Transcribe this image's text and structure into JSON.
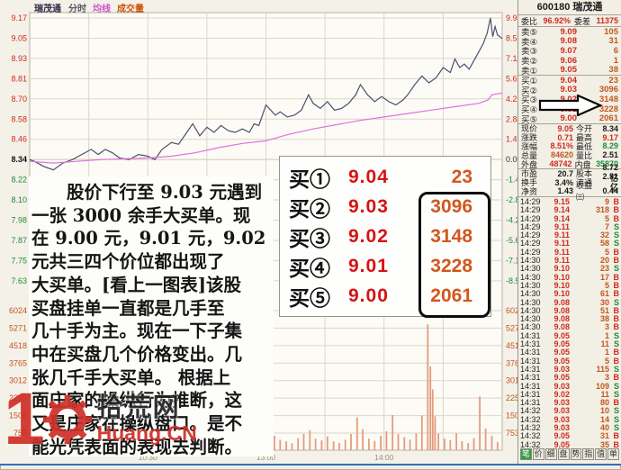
{
  "colors": {
    "up": "#cf2a1f",
    "down": "#1f8a3c",
    "volume": "#c2571d",
    "price_line": "#4a5070",
    "avg_line": "#e070e0",
    "bars": "#e59b7d",
    "highlight": "#0c0c0c",
    "tab_active": "#2f9e44",
    "window_bottom": "#2e6fc0"
  },
  "chart": {
    "title_stock": "瑞茂通",
    "legend": [
      {
        "label": "分时",
        "color": "#555566"
      },
      {
        "label": "均线",
        "color": "#cc55cc"
      },
      {
        "label": "成交量",
        "color": "#cc5511"
      }
    ]
  },
  "chart_data": {
    "type": "line",
    "title": "瑞茂通 分时走势",
    "x_axis": {
      "labels": [
        "10:30",
        "13:00",
        "14:00"
      ],
      "positions": [
        0.25,
        0.5,
        0.75
      ]
    },
    "price_axis": {
      "labels": [
        "9.17",
        "9.05",
        "8.93",
        "8.81",
        "8.70",
        "8.58",
        "8.46",
        "8.34",
        "8.22",
        "8.10",
        "7.98",
        "7.87",
        "7.75",
        "7.63"
      ],
      "prev_close": "8.34"
    },
    "pct_axis": {
      "labels": [
        "9.95%",
        "8.53%",
        "7.11%",
        "5.69%",
        "4.27%",
        "2.84%",
        "1.42%",
        "0.00%",
        "-1.42%",
        "-2.84%",
        "-4.27%",
        "-5.69%",
        "-7.11%",
        "-8.53%"
      ]
    },
    "volume_axis": {
      "labels": [
        "6024",
        "5271",
        "4518",
        "3765",
        "3012",
        "2259",
        "1506",
        "753"
      ]
    },
    "series": [
      {
        "name": "price",
        "color": "#4a5070",
        "points": [
          [
            0,
            8.34
          ],
          [
            0.01,
            8.33
          ],
          [
            0.03,
            8.3
          ],
          [
            0.05,
            8.28
          ],
          [
            0.07,
            8.32
          ],
          [
            0.09,
            8.34
          ],
          [
            0.11,
            8.37
          ],
          [
            0.13,
            8.4
          ],
          [
            0.145,
            8.37
          ],
          [
            0.16,
            8.4
          ],
          [
            0.175,
            8.38
          ],
          [
            0.19,
            8.35
          ],
          [
            0.21,
            8.34
          ],
          [
            0.23,
            8.37
          ],
          [
            0.25,
            8.36
          ],
          [
            0.265,
            8.34
          ],
          [
            0.28,
            8.4
          ],
          [
            0.3,
            8.44
          ],
          [
            0.315,
            8.43
          ],
          [
            0.33,
            8.49
          ],
          [
            0.345,
            8.55
          ],
          [
            0.36,
            8.48
          ],
          [
            0.375,
            8.53
          ],
          [
            0.39,
            8.5
          ],
          [
            0.405,
            8.54
          ],
          [
            0.42,
            8.51
          ],
          [
            0.435,
            8.5
          ],
          [
            0.45,
            8.52
          ],
          [
            0.465,
            8.5
          ],
          [
            0.475,
            8.55
          ],
          [
            0.485,
            8.54
          ],
          [
            0.5,
            8.66
          ],
          [
            0.51,
            8.63
          ],
          [
            0.52,
            8.6
          ],
          [
            0.53,
            8.62
          ],
          [
            0.545,
            8.59
          ],
          [
            0.56,
            8.6
          ],
          [
            0.575,
            8.63
          ],
          [
            0.59,
            8.72
          ],
          [
            0.6,
            8.67
          ],
          [
            0.615,
            8.64
          ],
          [
            0.63,
            8.68
          ],
          [
            0.645,
            8.63
          ],
          [
            0.66,
            8.64
          ],
          [
            0.675,
            8.67
          ],
          [
            0.69,
            8.72
          ],
          [
            0.7,
            8.78
          ],
          [
            0.715,
            8.72
          ],
          [
            0.73,
            8.68
          ],
          [
            0.745,
            8.71
          ],
          [
            0.76,
            8.68
          ],
          [
            0.775,
            8.66
          ],
          [
            0.79,
            8.69
          ],
          [
            0.8,
            8.72
          ],
          [
            0.815,
            8.78
          ],
          [
            0.83,
            8.83
          ],
          [
            0.845,
            8.79
          ],
          [
            0.86,
            8.82
          ],
          [
            0.875,
            8.88
          ],
          [
            0.89,
            8.85
          ],
          [
            0.9,
            8.93
          ],
          [
            0.91,
            8.88
          ],
          [
            0.92,
            8.9
          ],
          [
            0.93,
            8.87
          ],
          [
            0.94,
            8.92
          ],
          [
            0.95,
            8.97
          ],
          [
            0.96,
            9.02
          ],
          [
            0.968,
            9.08
          ],
          [
            0.975,
            9.17
          ],
          [
            0.98,
            9.06
          ],
          [
            0.985,
            9.12
          ],
          [
            0.99,
            9.07
          ],
          [
            1.0,
            9.05
          ]
        ]
      },
      {
        "name": "avg",
        "color": "#e070e0",
        "points": [
          [
            0,
            8.33
          ],
          [
            0.05,
            8.32
          ],
          [
            0.1,
            8.33
          ],
          [
            0.15,
            8.34
          ],
          [
            0.2,
            8.345
          ],
          [
            0.25,
            8.35
          ],
          [
            0.3,
            8.36
          ],
          [
            0.35,
            8.38
          ],
          [
            0.4,
            8.41
          ],
          [
            0.45,
            8.435
          ],
          [
            0.5,
            8.45
          ],
          [
            0.55,
            8.49
          ],
          [
            0.6,
            8.52
          ],
          [
            0.65,
            8.545
          ],
          [
            0.7,
            8.57
          ],
          [
            0.75,
            8.59
          ],
          [
            0.8,
            8.61
          ],
          [
            0.85,
            8.63
          ],
          [
            0.9,
            8.65
          ],
          [
            0.95,
            8.67
          ],
          [
            0.97,
            8.69
          ],
          [
            0.978,
            8.72
          ],
          [
            1.0,
            8.73
          ]
        ]
      }
    ],
    "volume_bars": {
      "color": "#e59b7d",
      "points": [
        [
          0.008,
          420
        ],
        [
          0.022,
          260
        ],
        [
          0.036,
          180
        ],
        [
          0.05,
          310
        ],
        [
          0.064,
          150
        ],
        [
          0.078,
          120
        ],
        [
          0.092,
          210
        ],
        [
          0.106,
          160
        ],
        [
          0.12,
          140
        ],
        [
          0.134,
          110
        ],
        [
          0.148,
          95
        ],
        [
          0.162,
          130
        ],
        [
          0.176,
          175
        ],
        [
          0.19,
          110
        ],
        [
          0.204,
          90
        ],
        [
          0.218,
          140
        ],
        [
          0.232,
          100
        ],
        [
          0.246,
          80
        ],
        [
          0.26,
          120
        ],
        [
          0.274,
          95
        ],
        [
          0.288,
          75
        ],
        [
          0.302,
          115
        ],
        [
          0.316,
          150
        ],
        [
          0.33,
          260
        ],
        [
          0.344,
          200
        ],
        [
          0.358,
          120
        ],
        [
          0.372,
          90
        ],
        [
          0.386,
          70
        ],
        [
          0.4,
          95
        ],
        [
          0.414,
          65
        ],
        [
          0.428,
          55
        ],
        [
          0.442,
          75
        ],
        [
          0.455,
          180
        ],
        [
          0.468,
          220
        ],
        [
          0.48,
          150
        ],
        [
          0.493,
          300
        ],
        [
          0.505,
          1250
        ],
        [
          0.518,
          620
        ],
        [
          0.53,
          450
        ],
        [
          0.543,
          380
        ],
        [
          0.555,
          300
        ],
        [
          0.568,
          520
        ],
        [
          0.58,
          700
        ],
        [
          0.593,
          860
        ],
        [
          0.605,
          500
        ],
        [
          0.618,
          420
        ],
        [
          0.63,
          600
        ],
        [
          0.643,
          380
        ],
        [
          0.655,
          310
        ],
        [
          0.668,
          450
        ],
        [
          0.68,
          700
        ],
        [
          0.693,
          1420
        ],
        [
          0.705,
          900
        ],
        [
          0.718,
          500
        ],
        [
          0.73,
          400
        ],
        [
          0.743,
          620
        ],
        [
          0.755,
          820
        ],
        [
          0.768,
          1520
        ],
        [
          0.78,
          700
        ],
        [
          0.793,
          560
        ],
        [
          0.805,
          460
        ],
        [
          0.818,
          720
        ],
        [
          0.83,
          1500
        ],
        [
          0.8425,
          5430
        ],
        [
          0.848,
          3620
        ],
        [
          0.853,
          2620
        ],
        [
          0.858,
          1460
        ],
        [
          0.865,
          720
        ],
        [
          0.878,
          500
        ],
        [
          0.89,
          430
        ],
        [
          0.903,
          730
        ],
        [
          0.915,
          390
        ],
        [
          0.928,
          310
        ],
        [
          0.94,
          520
        ],
        [
          0.9525,
          2320
        ],
        [
          0.965,
          940
        ],
        [
          0.978,
          620
        ],
        [
          0.99,
          360
        ]
      ]
    }
  },
  "annotation": {
    "lines": [
      "　　股价下行至 9.03 元遇到",
      "一张 3000 余手大买单。现",
      "在 9.00 元，9.01 元，9.02",
      "元共三四个价位都出现了",
      "大买单。[看上一图表]该股",
      "买盘挂单一直都是几手至",
      "几十手为主。现在一下子集",
      "中在买盘几个价格变出。几",
      "张几千手大买单。 根据上",
      "面庄家的操纵行为推断，这",
      "又是庄家在操纵盘口。是不",
      "能光凭表面的表现去判断。"
    ],
    "order_table": {
      "rows": [
        [
          "买①",
          "9.04",
          "23"
        ],
        [
          "买②",
          "9.03",
          "3096"
        ],
        [
          "买③",
          "9.02",
          "3148"
        ],
        [
          "买④",
          "9.01",
          "3228"
        ],
        [
          "买⑤",
          "9.00",
          "2061"
        ]
      ]
    }
  },
  "watermark": {
    "digit": "1",
    "site": "拾荒网",
    "domain": "Huang.CN"
  },
  "panel": {
    "title": "600180 瑞茂通",
    "weibi": {
      "label": "委比",
      "value": "96.92%",
      "label2": "委差",
      "value2": "11375"
    },
    "asks": [
      [
        "卖⑤",
        "9.09",
        "105"
      ],
      [
        "卖④",
        "9.08",
        "31"
      ],
      [
        "卖③",
        "9.07",
        "6"
      ],
      [
        "卖②",
        "9.06",
        "1"
      ],
      [
        "卖①",
        "9.05",
        "38"
      ]
    ],
    "bids": [
      [
        "买①",
        "9.04",
        "23"
      ],
      [
        "买②",
        "9.03",
        "3096"
      ],
      [
        "买③",
        "9.02",
        "3148"
      ],
      [
        "买④",
        "9.01",
        "3228"
      ],
      [
        "买⑤",
        "9.00",
        "2061"
      ]
    ],
    "stats": [
      {
        "l1": "现价",
        "v1": "9.05",
        "c1": "red",
        "l2": "今开",
        "v2": "8.34",
        "c2": "dark"
      },
      {
        "l1": "涨跌",
        "v1": "0.71",
        "c1": "red",
        "l2": "最高",
        "v2": "9.17",
        "c2": "red"
      },
      {
        "l1": "涨幅",
        "v1": "8.51%",
        "c1": "red",
        "l2": "最低",
        "v2": "8.29",
        "c2": "green"
      },
      {
        "l1": "总量",
        "v1": "84620",
        "c1": "orange",
        "l2": "量比",
        "v2": "2.51",
        "c2": "dark"
      },
      {
        "l1": "外盘",
        "v1": "48742",
        "c1": "red",
        "l2": "内盘",
        "v2": "35870",
        "c2": "green",
        "sep": true
      },
      {
        "l1": "市盈",
        "v1": "20.7",
        "c1": "dark",
        "l2": "股本",
        "v2": "8.72亿",
        "c2": "dark"
      },
      {
        "l1": "换手",
        "v1": "3.4%",
        "c1": "dark",
        "l2": "流通",
        "v2": "2.51亿",
        "c2": "dark"
      },
      {
        "l1": "净资",
        "v1": "1.43",
        "c1": "dark",
        "l2": "收益㈢",
        "v2": "0.44",
        "c2": "dark"
      }
    ],
    "ticks": [
      [
        "14:29",
        "9.15",
        "9",
        "B"
      ],
      [
        "14:29",
        "9.14",
        "318",
        "B"
      ],
      [
        "14:29",
        "9.14",
        "5",
        "B"
      ],
      [
        "14:29",
        "9.11",
        "7",
        "S"
      ],
      [
        "14:29",
        "9.11",
        "32",
        "S"
      ],
      [
        "14:29",
        "9.11",
        "58",
        "S"
      ],
      [
        "14:29",
        "9.11",
        "5",
        "B"
      ],
      [
        "14:30",
        "9.11",
        "20",
        "B"
      ],
      [
        "14:30",
        "9.10",
        "23",
        "S"
      ],
      [
        "14:30",
        "9.10",
        "17",
        "B"
      ],
      [
        "14:30",
        "9.10",
        "5",
        "B"
      ],
      [
        "14:30",
        "9.10",
        "61",
        "B"
      ],
      [
        "14:30",
        "9.08",
        "30",
        "S"
      ],
      [
        "14:30",
        "9.08",
        "51",
        "B"
      ],
      [
        "14:30",
        "9.08",
        "38",
        "B"
      ],
      [
        "14:30",
        "9.08",
        "3",
        "B"
      ],
      [
        "14:31",
        "9.05",
        "1",
        "S"
      ],
      [
        "14:31",
        "9.05",
        "11",
        "S"
      ],
      [
        "14:31",
        "9.05",
        "1",
        "B"
      ],
      [
        "14:31",
        "9.05",
        "5",
        "B"
      ],
      [
        "14:31",
        "9.03",
        "115",
        "S"
      ],
      [
        "14:31",
        "9.05",
        "3",
        "B"
      ],
      [
        "14:31",
        "9.03",
        "109",
        "S"
      ],
      [
        "14:31",
        "9.02",
        "11",
        "S"
      ],
      [
        "14:31",
        "9.03",
        "80",
        "B"
      ],
      [
        "14:32",
        "9.03",
        "10",
        "S"
      ],
      [
        "14:32",
        "9.03",
        "14",
        "S"
      ],
      [
        "14:32",
        "9.03",
        "40",
        "S"
      ],
      [
        "14:32",
        "9.05",
        "31",
        "B"
      ],
      [
        "14:32",
        "9.05",
        "35",
        "B"
      ]
    ],
    "tabs": [
      "笔",
      "价",
      "细",
      "盘",
      "势",
      "指",
      "值",
      "单"
    ]
  }
}
